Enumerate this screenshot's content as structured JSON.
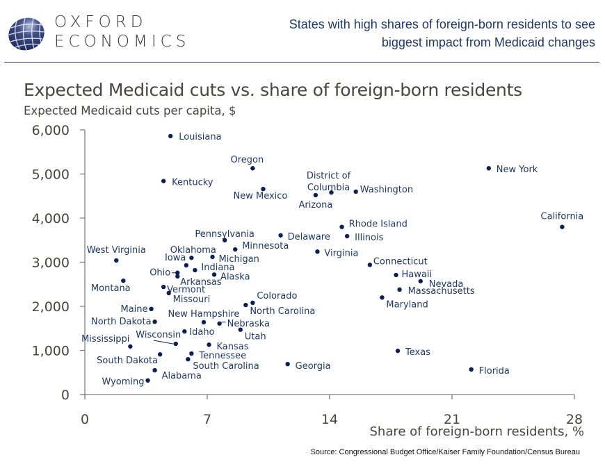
{
  "header": {
    "logo_line1": "OXFORD",
    "logo_line2": "ECONOMICS",
    "headline_line1": "States with high shares of foreign-born residents to see",
    "headline_line2": "biggest impact from Medicaid changes"
  },
  "colors": {
    "brand_navy": "#1f3864",
    "point": "#0d1f55",
    "axis": "#7f7f7f",
    "text_gray": "#4a4540"
  },
  "source": "Source: Congressional Budget Office/Kaiser Family Foundation/Census Bureau",
  "chart_data": {
    "type": "scatter",
    "title": "Expected Medicaid cuts vs. share of foreign-born residents",
    "ylabel": "Expected Medicaid cuts per capita, $",
    "xlabel": "Share of foreign-born residents, %",
    "xlim": [
      0,
      28
    ],
    "ylim": [
      0,
      6000
    ],
    "xticks": [
      0,
      7,
      14,
      21,
      28
    ],
    "yticks": [
      0,
      1000,
      2000,
      3000,
      4000,
      5000,
      6000
    ],
    "ytick_labels": [
      "0",
      "1,000",
      "2,000",
      "3,000",
      "4,000",
      "5,000",
      "6,000"
    ],
    "xtick_labels": [
      "0",
      "7",
      "14",
      "21",
      "28"
    ],
    "grid": false,
    "points": [
      {
        "label": "Louisiana",
        "x": 4.9,
        "y": 5860
      },
      {
        "label": "Oregon",
        "x": 9.6,
        "y": 5130
      },
      {
        "label": "Kentucky",
        "x": 4.5,
        "y": 4840
      },
      {
        "label": "New Mexico",
        "x": 10.2,
        "y": 4660
      },
      {
        "label": "District of Columbia",
        "x": 14.1,
        "y": 4580
      },
      {
        "label": "Arizona",
        "x": 13.2,
        "y": 4520
      },
      {
        "label": "Washington",
        "x": 15.5,
        "y": 4600
      },
      {
        "label": "New York",
        "x": 23.1,
        "y": 5130
      },
      {
        "label": "California",
        "x": 27.3,
        "y": 3800
      },
      {
        "label": "Rhode Island",
        "x": 14.7,
        "y": 3800
      },
      {
        "label": "Delaware",
        "x": 11.2,
        "y": 3610
      },
      {
        "label": "Illinois",
        "x": 15.0,
        "y": 3590
      },
      {
        "label": "Pennsylvania",
        "x": 8.0,
        "y": 3500
      },
      {
        "label": "Minnesota",
        "x": 8.6,
        "y": 3290
      },
      {
        "label": "Virginia",
        "x": 13.3,
        "y": 3240
      },
      {
        "label": "Oklahoma",
        "x": 5.8,
        "y": 2930
      },
      {
        "label": "Iowa",
        "x": 6.1,
        "y": 3100
      },
      {
        "label": "Michigan",
        "x": 7.3,
        "y": 3120
      },
      {
        "label": "West Virginia",
        "x": 1.8,
        "y": 3040
      },
      {
        "label": "Indiana",
        "x": 6.3,
        "y": 2820
      },
      {
        "label": "Ohio",
        "x": 5.3,
        "y": 2760
      },
      {
        "label": "Arkansas",
        "x": 5.3,
        "y": 2680
      },
      {
        "label": "Alaska",
        "x": 7.4,
        "y": 2720
      },
      {
        "label": "Connecticut",
        "x": 16.3,
        "y": 2940
      },
      {
        "label": "Montana",
        "x": 2.2,
        "y": 2580
      },
      {
        "label": "Hawaii",
        "x": 17.8,
        "y": 2710
      },
      {
        "label": "Nevada",
        "x": 19.2,
        "y": 2570
      },
      {
        "label": "Vermont",
        "x": 4.5,
        "y": 2440
      },
      {
        "label": "Massachusetts",
        "x": 18.0,
        "y": 2380
      },
      {
        "label": "Missouri",
        "x": 4.8,
        "y": 2300
      },
      {
        "label": "Maryland",
        "x": 17.0,
        "y": 2200
      },
      {
        "label": "Colorado",
        "x": 9.6,
        "y": 2080
      },
      {
        "label": "North Carolina",
        "x": 9.2,
        "y": 2030
      },
      {
        "label": "Maine",
        "x": 3.8,
        "y": 1940
      },
      {
        "label": "North Dakota",
        "x": 4.0,
        "y": 1650
      },
      {
        "label": "New Hampshire",
        "x": 6.8,
        "y": 1640
      },
      {
        "label": "Nebraska",
        "x": 7.7,
        "y": 1610
      },
      {
        "label": "Utah",
        "x": 8.9,
        "y": 1470
      },
      {
        "label": "Idaho",
        "x": 5.7,
        "y": 1430
      },
      {
        "label": "Wisconsin",
        "x": 5.2,
        "y": 1150
      },
      {
        "label": "Kansas",
        "x": 7.1,
        "y": 1130
      },
      {
        "label": "Mississippi",
        "x": 2.6,
        "y": 1090
      },
      {
        "label": "Texas",
        "x": 17.9,
        "y": 990
      },
      {
        "label": "Tennessee",
        "x": 6.1,
        "y": 930
      },
      {
        "label": "South Dakota",
        "x": 4.3,
        "y": 910
      },
      {
        "label": "South Carolina",
        "x": 5.9,
        "y": 800
      },
      {
        "label": "Georgia",
        "x": 11.6,
        "y": 690
      },
      {
        "label": "Florida",
        "x": 22.1,
        "y": 570
      },
      {
        "label": "Alabama",
        "x": 4.0,
        "y": 550
      },
      {
        "label": "Wyoming",
        "x": 3.6,
        "y": 320
      }
    ]
  }
}
